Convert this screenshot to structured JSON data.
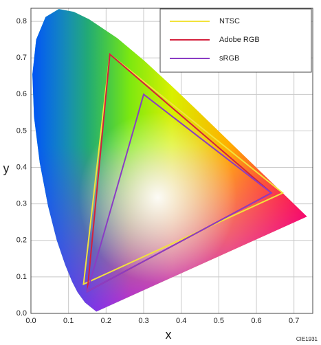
{
  "chart_data": {
    "type": "chromaticity",
    "x_label": "x",
    "y_label": "y",
    "annotation": "CIE1931",
    "xlim": [
      0,
      0.75
    ],
    "ylim": [
      0,
      0.836
    ],
    "xticks": [
      {
        "value": 0,
        "label": "0.0"
      },
      0.1,
      0.2,
      0.3,
      0.4,
      0.5,
      0.6,
      0.7
    ],
    "yticks": [
      {
        "value": 0,
        "label": "0.0"
      },
      0.1,
      0.2,
      0.3,
      0.4,
      0.5,
      0.6,
      0.7,
      0.8
    ],
    "grid": true,
    "legend": "upper right",
    "locus": {
      "x": [
        0.1741,
        0.144,
        0.1241,
        0.1096,
        0.0913,
        0.0687,
        0.0454,
        0.0235,
        0.0082,
        0.0039,
        0.0139,
        0.0389,
        0.0743,
        0.1142,
        0.1547,
        0.2296,
        0.3016,
        0.3731,
        0.4441,
        0.5125,
        0.5752,
        0.627,
        0.6915,
        0.719,
        0.7347
      ],
      "y": [
        0.005,
        0.0297,
        0.0578,
        0.0868,
        0.1327,
        0.2007,
        0.295,
        0.4127,
        0.5384,
        0.6548,
        0.7502,
        0.812,
        0.8338,
        0.8262,
        0.8059,
        0.7543,
        0.6923,
        0.6245,
        0.5547,
        0.4866,
        0.4242,
        0.3725,
        0.3083,
        0.2809,
        0.2653
      ]
    },
    "series": [
      {
        "name": "NTSC",
        "color": "#f2e23c",
        "x": [
          0.67,
          0.21,
          0.14
        ],
        "y": [
          0.33,
          0.71,
          0.08
        ]
      },
      {
        "name": "Adobe RGB",
        "color": "#d4203c",
        "x": [
          0.64,
          0.21,
          0.15
        ],
        "y": [
          0.33,
          0.71,
          0.06
        ]
      },
      {
        "name": "sRGB",
        "color": "#8a3cc4",
        "x": [
          0.64,
          0.3,
          0.15
        ],
        "y": [
          0.33,
          0.6,
          0.06
        ]
      }
    ]
  }
}
